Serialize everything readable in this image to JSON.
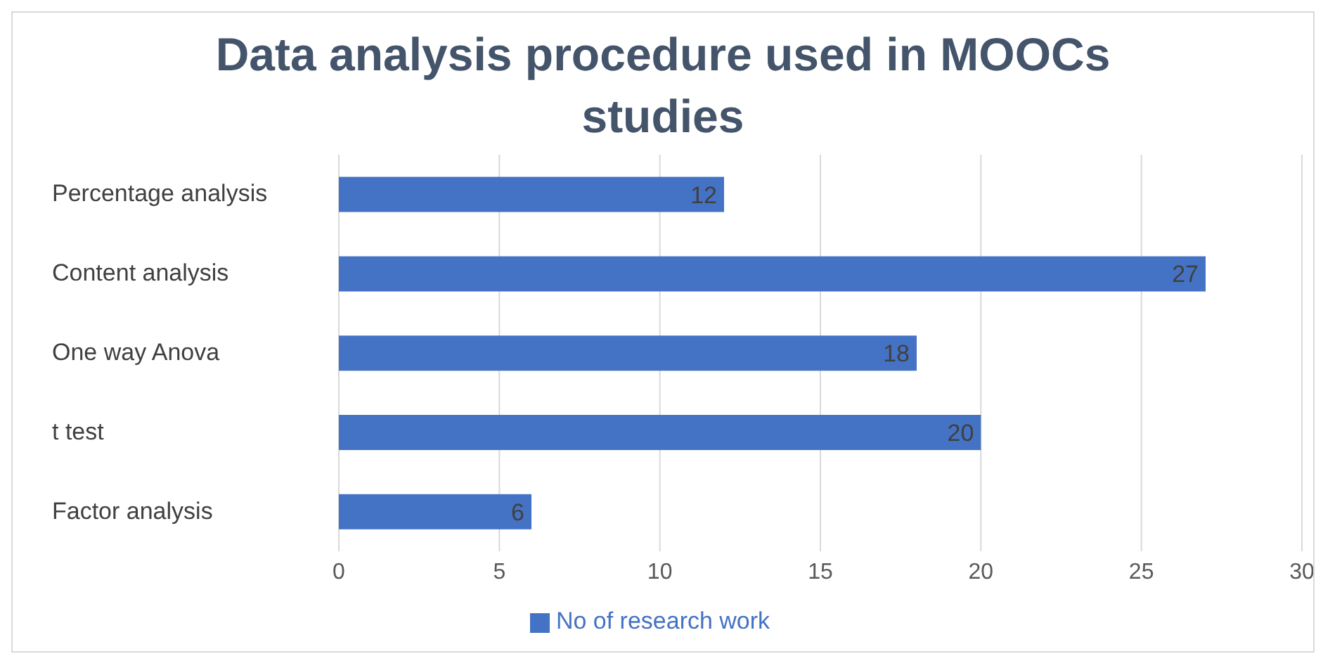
{
  "chart_data": {
    "type": "bar",
    "orientation": "horizontal",
    "title": "Data analysis procedure used in MOOCs studies",
    "categories": [
      "Percentage analysis",
      "Content analysis",
      "One way Anova",
      "t test",
      "Factor analysis"
    ],
    "series": [
      {
        "name": "No of research work",
        "color": "#4472c4",
        "values": [
          12,
          27,
          18,
          20,
          6
        ]
      }
    ],
    "xlim": [
      0,
      30
    ],
    "xticks": [
      0,
      5,
      10,
      15,
      20,
      25,
      30
    ],
    "grid": "x",
    "legend": "bottom",
    "data_labels": true
  }
}
